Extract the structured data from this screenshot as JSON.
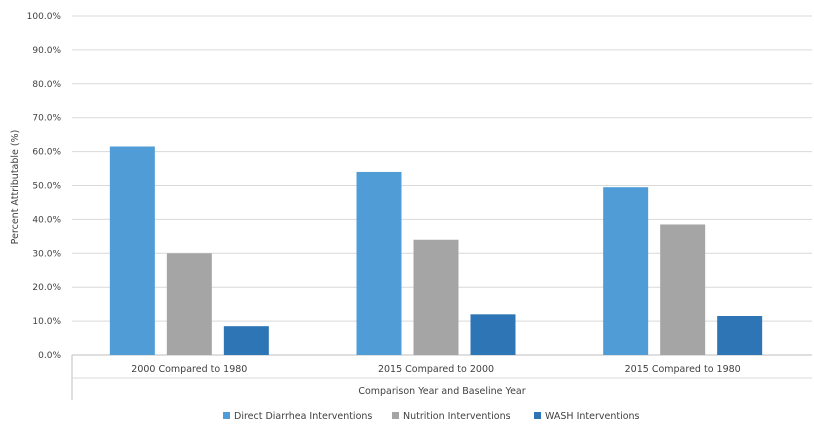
{
  "chart_data": {
    "type": "bar",
    "title": "",
    "xlabel": "Comparison Year and Baseline Year",
    "ylabel": "Percent Attributable (%)",
    "ylim": [
      0,
      100
    ],
    "yticks": [
      "0.0%",
      "10.0%",
      "20.0%",
      "30.0%",
      "40.0%",
      "50.0%",
      "60.0%",
      "70.0%",
      "80.0%",
      "90.0%",
      "100.0%"
    ],
    "grid": true,
    "legend_position": "bottom",
    "categories": [
      "2000 Compared to 1980",
      "2015 Compared to 2000",
      "2015 Compared to 1980"
    ],
    "series": [
      {
        "name": "Direct Diarrhea Interventions",
        "color": "#4f9cd6",
        "values": [
          61.5,
          54.0,
          49.5
        ]
      },
      {
        "name": "Nutrition Interventions",
        "color": "#a5a5a5",
        "values": [
          30.0,
          34.0,
          38.5
        ]
      },
      {
        "name": "WASH Interventions",
        "color": "#2e75b6",
        "values": [
          8.5,
          12.0,
          11.5
        ]
      }
    ]
  }
}
